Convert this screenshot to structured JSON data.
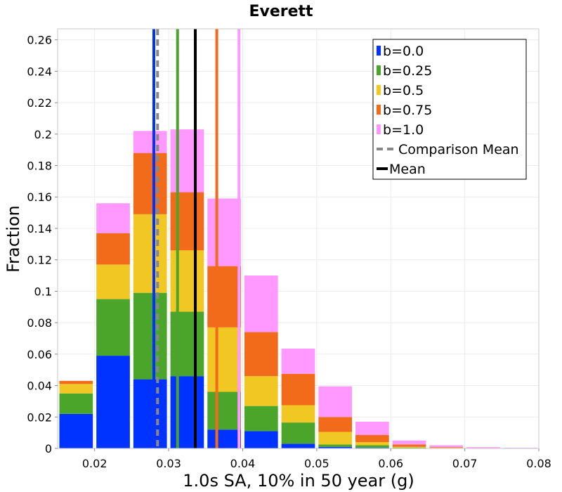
{
  "chart_data": {
    "type": "bar",
    "stacked": true,
    "title": "Everett",
    "xlabel": "1.0s SA, 10% in 50 year (g)",
    "ylabel": "Fraction",
    "xlim": [
      0.015,
      0.08
    ],
    "ylim": [
      0,
      0.267
    ],
    "xticks": [
      "0.02",
      "0.03",
      "0.04",
      "0.05",
      "0.06",
      "0.07",
      "0.08"
    ],
    "xtick_values": [
      0.02,
      0.03,
      0.04,
      0.05,
      0.06,
      0.07,
      0.08
    ],
    "yticks": [
      "0",
      "0.02",
      "0.04",
      "0.06",
      "0.08",
      "0.1",
      "0.12",
      "0.14",
      "0.16",
      "0.18",
      "0.2",
      "0.22",
      "0.24",
      "0.26"
    ],
    "ytick_values": [
      0,
      0.02,
      0.04,
      0.06,
      0.08,
      0.1,
      0.12,
      0.14,
      0.16,
      0.18,
      0.2,
      0.22,
      0.24,
      0.26
    ],
    "grid": true,
    "legend_position": "top-right",
    "bin_width": 0.005,
    "bin_starts": [
      0.015,
      0.02,
      0.025,
      0.03,
      0.035,
      0.04,
      0.045,
      0.05,
      0.055,
      0.06,
      0.065,
      0.07,
      0.075
    ],
    "series": [
      {
        "name": "b=0.0",
        "color": "#0033ff",
        "values": [
          0.022,
          0.059,
          0.044,
          0.046,
          0.012,
          0.011,
          0.003,
          0.001,
          0.0005,
          0.0002,
          0,
          0,
          0
        ]
      },
      {
        "name": "b=0.25",
        "color": "#4aa52a",
        "values": [
          0.013,
          0.036,
          0.055,
          0.041,
          0.024,
          0.016,
          0.0135,
          0.0015,
          0.0015,
          0.0003,
          0.0001,
          0,
          0
        ]
      },
      {
        "name": "b=0.5",
        "color": "#f1c823",
        "values": [
          0.006,
          0.022,
          0.05,
          0.039,
          0.041,
          0.019,
          0.011,
          0.008,
          0.002,
          0.0005,
          0.0003,
          0.0001,
          0
        ]
      },
      {
        "name": "b=0.75",
        "color": "#f26b1a",
        "values": [
          0.002,
          0.02,
          0.039,
          0.037,
          0.039,
          0.028,
          0.02,
          0.0095,
          0.0045,
          0.0015,
          0.0004,
          0.0002,
          0.0001
        ]
      },
      {
        "name": "b=1.0",
        "color": "#ff99ff",
        "values": [
          0,
          0.019,
          0.014,
          0.04,
          0.043,
          0.036,
          0.016,
          0.0195,
          0.0085,
          0.0025,
          0.0012,
          0.0005,
          0.0003
        ]
      }
    ],
    "vertical_lines": [
      {
        "series": "b=0.0",
        "x": 0.028,
        "color": "#0033ff",
        "style": "solid"
      },
      {
        "series": "b=0.25",
        "x": 0.0312,
        "color": "#4aa52a",
        "style": "solid"
      },
      {
        "series": "b=0.5",
        "x": 0.0336,
        "color": "#f1c823",
        "style": "solid"
      },
      {
        "series": "b=0.75",
        "x": 0.0365,
        "color": "#f26b1a",
        "style": "solid"
      },
      {
        "series": "b=1.0",
        "x": 0.0395,
        "color": "#ff99ff",
        "style": "solid"
      },
      {
        "series": "Comparison Mean",
        "x": 0.0285,
        "color": "#888888",
        "style": "dashed"
      },
      {
        "series": "Mean",
        "x": 0.0336,
        "color": "#000000",
        "style": "solid"
      }
    ],
    "legend": [
      {
        "label": "b=0.0",
        "color": "#0033ff",
        "kind": "swatch"
      },
      {
        "label": "b=0.25",
        "color": "#4aa52a",
        "kind": "swatch"
      },
      {
        "label": "b=0.5",
        "color": "#f1c823",
        "kind": "swatch"
      },
      {
        "label": "b=0.75",
        "color": "#f26b1a",
        "kind": "swatch"
      },
      {
        "label": "b=1.0",
        "color": "#ff99ff",
        "kind": "swatch"
      },
      {
        "label": "Comparison Mean",
        "color": "#888888",
        "kind": "dashed"
      },
      {
        "label": "Mean",
        "color": "#000000",
        "kind": "line"
      }
    ]
  }
}
